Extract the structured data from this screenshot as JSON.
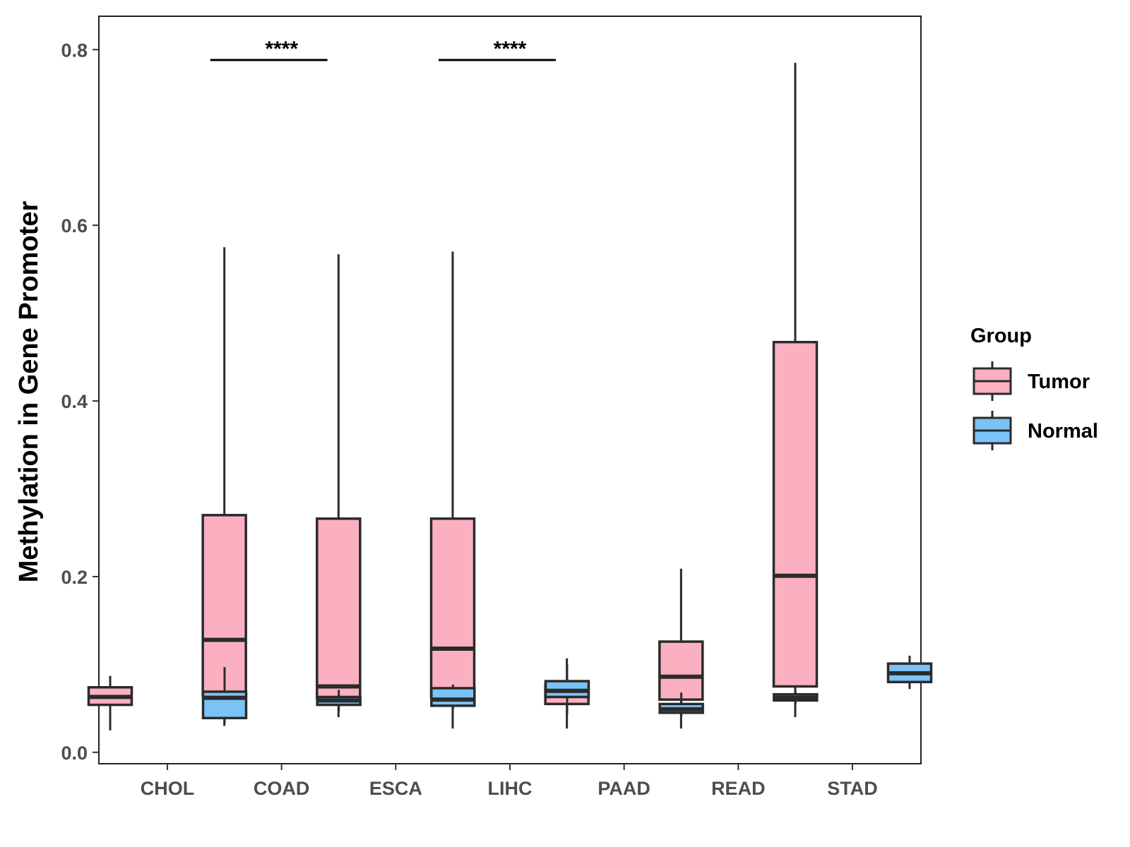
{
  "chart_data": {
    "type": "boxplot",
    "title": "",
    "xlabel": "",
    "ylabel": "Methylation in Gene Promoter",
    "ylim": [
      -0.013,
      0.838
    ],
    "yticks": [
      0.0,
      0.2,
      0.4,
      0.6,
      0.8
    ],
    "ytick_labels": [
      "0.0",
      "0.2",
      "0.4",
      "0.6",
      "0.8"
    ],
    "categories": [
      "CHOL",
      "COAD",
      "ESCA",
      "LIHC",
      "PAAD",
      "READ",
      "STAD"
    ],
    "grid": false,
    "legend": {
      "title": "Group",
      "position": "right"
    },
    "series": [
      {
        "name": "Tumor",
        "color": "#FBB0C2",
        "boxes": [
          {
            "min": 0.025,
            "q1": 0.054,
            "median": 0.063,
            "q3": 0.074,
            "max": 0.087
          },
          {
            "min": 0.03,
            "q1": 0.065,
            "median": 0.128,
            "q3": 0.27,
            "max": 0.575
          },
          {
            "min": 0.04,
            "q1": 0.062,
            "median": 0.075,
            "q3": 0.266,
            "max": 0.567
          },
          {
            "min": 0.027,
            "q1": 0.062,
            "median": 0.118,
            "q3": 0.266,
            "max": 0.57
          },
          {
            "min": 0.027,
            "q1": 0.055,
            "median": 0.064,
            "q3": 0.077,
            "max": 0.107
          },
          {
            "min": 0.027,
            "q1": 0.06,
            "median": 0.086,
            "q3": 0.126,
            "max": 0.209
          },
          {
            "min": 0.04,
            "q1": 0.075,
            "median": 0.201,
            "q3": 0.467,
            "max": 0.785
          }
        ]
      },
      {
        "name": "Normal",
        "color": "#7BC3F6",
        "boxes": [
          {
            "min": 0.033,
            "q1": 0.039,
            "median": 0.062,
            "q3": 0.069,
            "max": 0.097
          },
          {
            "min": 0.047,
            "q1": 0.054,
            "median": 0.059,
            "q3": 0.063,
            "max": 0.071
          },
          {
            "min": 0.049,
            "q1": 0.053,
            "median": 0.06,
            "q3": 0.073,
            "max": 0.077
          },
          {
            "min": 0.043,
            "q1": 0.063,
            "median": 0.07,
            "q3": 0.081,
            "max": 0.1
          },
          {
            "min": 0.041,
            "q1": 0.045,
            "median": 0.049,
            "q3": 0.055,
            "max": 0.068
          },
          {
            "min": 0.055,
            "q1": 0.059,
            "median": 0.062,
            "q3": 0.066,
            "max": 0.069
          },
          {
            "min": 0.072,
            "q1": 0.08,
            "median": 0.09,
            "q3": 0.101,
            "max": 0.11
          }
        ]
      }
    ],
    "annotations": [
      {
        "category": "COAD",
        "label": "****",
        "y": 0.785
      },
      {
        "category": "LIHC",
        "label": "****",
        "y": 0.785
      }
    ]
  }
}
